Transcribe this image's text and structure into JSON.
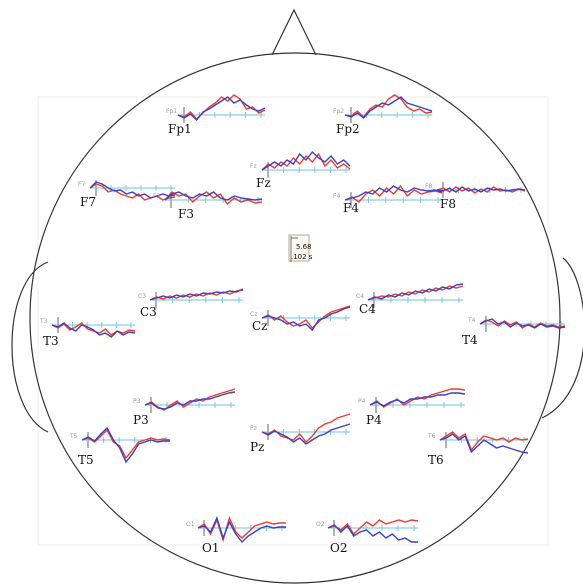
{
  "colors": {
    "head_outline": "#333333",
    "trace_red": "#ef3b2c",
    "trace_blue": "#3b3fc6",
    "axis_cyan": "#6cc6df",
    "axis_dark": "#555555"
  },
  "scale_box": {
    "value_top": "5.68",
    "value_bottom": ".102 s"
  },
  "electrodes": [
    {
      "id": "Fp1",
      "label": "Fp1"
    },
    {
      "id": "Fp2",
      "label": "Fp2"
    },
    {
      "id": "Fz",
      "label": "Fz"
    },
    {
      "id": "F7",
      "label": "F7"
    },
    {
      "id": "F3",
      "label": "F3"
    },
    {
      "id": "F4",
      "label": "F4"
    },
    {
      "id": "F8",
      "label": "F8"
    },
    {
      "id": "C3",
      "label": "C3"
    },
    {
      "id": "Cz",
      "label": "Cz"
    },
    {
      "id": "C4",
      "label": "C4"
    },
    {
      "id": "T3",
      "label": "T3"
    },
    {
      "id": "T4",
      "label": "T4"
    },
    {
      "id": "P3",
      "label": "P3"
    },
    {
      "id": "Pz",
      "label": "Pz"
    },
    {
      "id": "P4",
      "label": "P4"
    },
    {
      "id": "T5",
      "label": "T5"
    },
    {
      "id": "T6",
      "label": "T6"
    },
    {
      "id": "O1",
      "label": "O1"
    },
    {
      "id": "O2",
      "label": "O2"
    }
  ]
}
